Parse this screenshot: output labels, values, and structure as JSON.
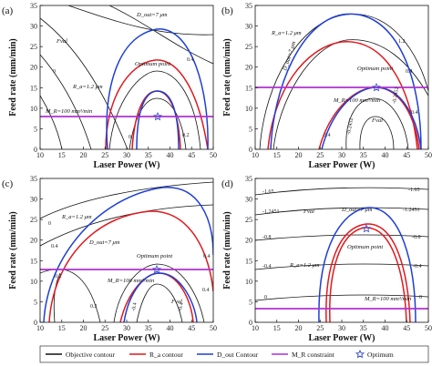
{
  "chart_data": [
    {
      "panel_label": "(a)",
      "type": "line",
      "xlabel": "Laser Power (W)",
      "ylabel": "Feed rate (mm/min)",
      "xlim": [
        10,
        50
      ],
      "ylim": [
        0,
        35
      ],
      "xticks": [
        10,
        15,
        20,
        25,
        30,
        35,
        40,
        45,
        50
      ],
      "yticks": [
        0,
        5,
        10,
        15,
        20,
        25,
        30,
        35
      ],
      "constraint_line": {
        "feed_rate": 12.5,
        "label": "M_R=100 mm³/min"
      },
      "optimum": {
        "power": 38.5,
        "feed_rate": 12.5
      },
      "annotations": [
        "Fval",
        "D_out=7 μm",
        "R_a=1.2 μm",
        "Optimum point",
        "M_R=100 mm³/min"
      ],
      "contour_labels": [
        "0",
        "0.2",
        "0.4",
        "0"
      ]
    },
    {
      "panel_label": "(b)",
      "type": "line",
      "xlabel": "Laser Power (W)",
      "ylabel": "Feed rate (mm/min)",
      "xlim": [
        10,
        50
      ],
      "ylim": [
        0,
        35
      ],
      "xticks": [
        10,
        15,
        20,
        25,
        30,
        35,
        40,
        45,
        50
      ],
      "yticks": [
        0,
        5,
        10,
        15,
        20,
        25,
        30,
        35
      ],
      "constraint_line": {
        "feed_rate": 19,
        "label": "M_R=100 mm³/min"
      },
      "optimum": {
        "power": 38.5,
        "feed_rate": 19
      },
      "annotations": [
        "R_a=1.2 μm",
        "D_out=7 μm",
        "Optimum point",
        "M_R=100 mm³/min",
        "Fval"
      ],
      "contour_labels": [
        "1.2",
        "0.4",
        "0.4",
        "-0.2452",
        "-0.2452",
        "0.4"
      ]
    },
    {
      "panel_label": "(c)",
      "type": "line",
      "xlabel": "Laser Power (W)",
      "ylabel": "Feed rate (mm/min)",
      "xlim": [
        10,
        50
      ],
      "ylim": [
        0,
        35
      ],
      "xticks": [
        10,
        15,
        20,
        25,
        30,
        35,
        40,
        45,
        50
      ],
      "yticks": [
        0,
        5,
        10,
        15,
        20,
        25,
        30,
        35
      ],
      "constraint_line": {
        "feed_rate": 17,
        "label": "M_R=100 mm³/min"
      },
      "optimum": {
        "power": 38,
        "feed_rate": 17
      },
      "annotations": [
        "R_a=1.2 μm",
        "D_out=7 μm",
        "Optimum point",
        "M_R=100 mm³/min",
        "Fval"
      ],
      "contour_labels": [
        "0",
        "0.4",
        "0.2",
        "0.4",
        "0.2",
        "-0.4",
        "-0.4",
        "0.4"
      ]
    },
    {
      "panel_label": "(d)",
      "type": "line",
      "xlabel": "Laser Power (W)",
      "ylabel": "Feed rate (mm/min)",
      "xlim": [
        10,
        50
      ],
      "ylim": [
        0,
        35
      ],
      "xticks": [
        10,
        15,
        20,
        25,
        30,
        35,
        40,
        45,
        50
      ],
      "yticks": [
        0,
        5,
        10,
        15,
        20,
        25,
        30,
        35
      ],
      "constraint_line": {
        "feed_rate": 10,
        "label": "M_R=100 mm³/min"
      },
      "optimum": {
        "power": 38,
        "feed_rate": 22
      },
      "annotations": [
        "Fval",
        "D_out=7 μm",
        "Optimum point",
        "R_a=1.2 μm",
        "M_R=100 mm³/min"
      ],
      "contour_labels": [
        "-1.65",
        "-1.65",
        "-1.2451",
        "-1.2451",
        "-0.8",
        "-0.8",
        "-0.4",
        "-0.4",
        "0",
        "0"
      ]
    }
  ],
  "legend": {
    "items": [
      {
        "label": "Objective contour",
        "color": "#000000",
        "kind": "line"
      },
      {
        "label": "R_a contour",
        "color": "#e0191e",
        "kind": "line"
      },
      {
        "label": "D_out Contour",
        "color": "#1f3fd6",
        "kind": "line"
      },
      {
        "label": "M_R constraint",
        "color": "#b030d0",
        "kind": "line"
      },
      {
        "label": "Optimum",
        "color": "#3048c8",
        "kind": "star"
      }
    ]
  },
  "colors": {
    "objective": "#111111",
    "ra": "#e0191e",
    "dout": "#1f3fd6",
    "constraint": "#b030d0",
    "optimum": "#3048c8"
  }
}
